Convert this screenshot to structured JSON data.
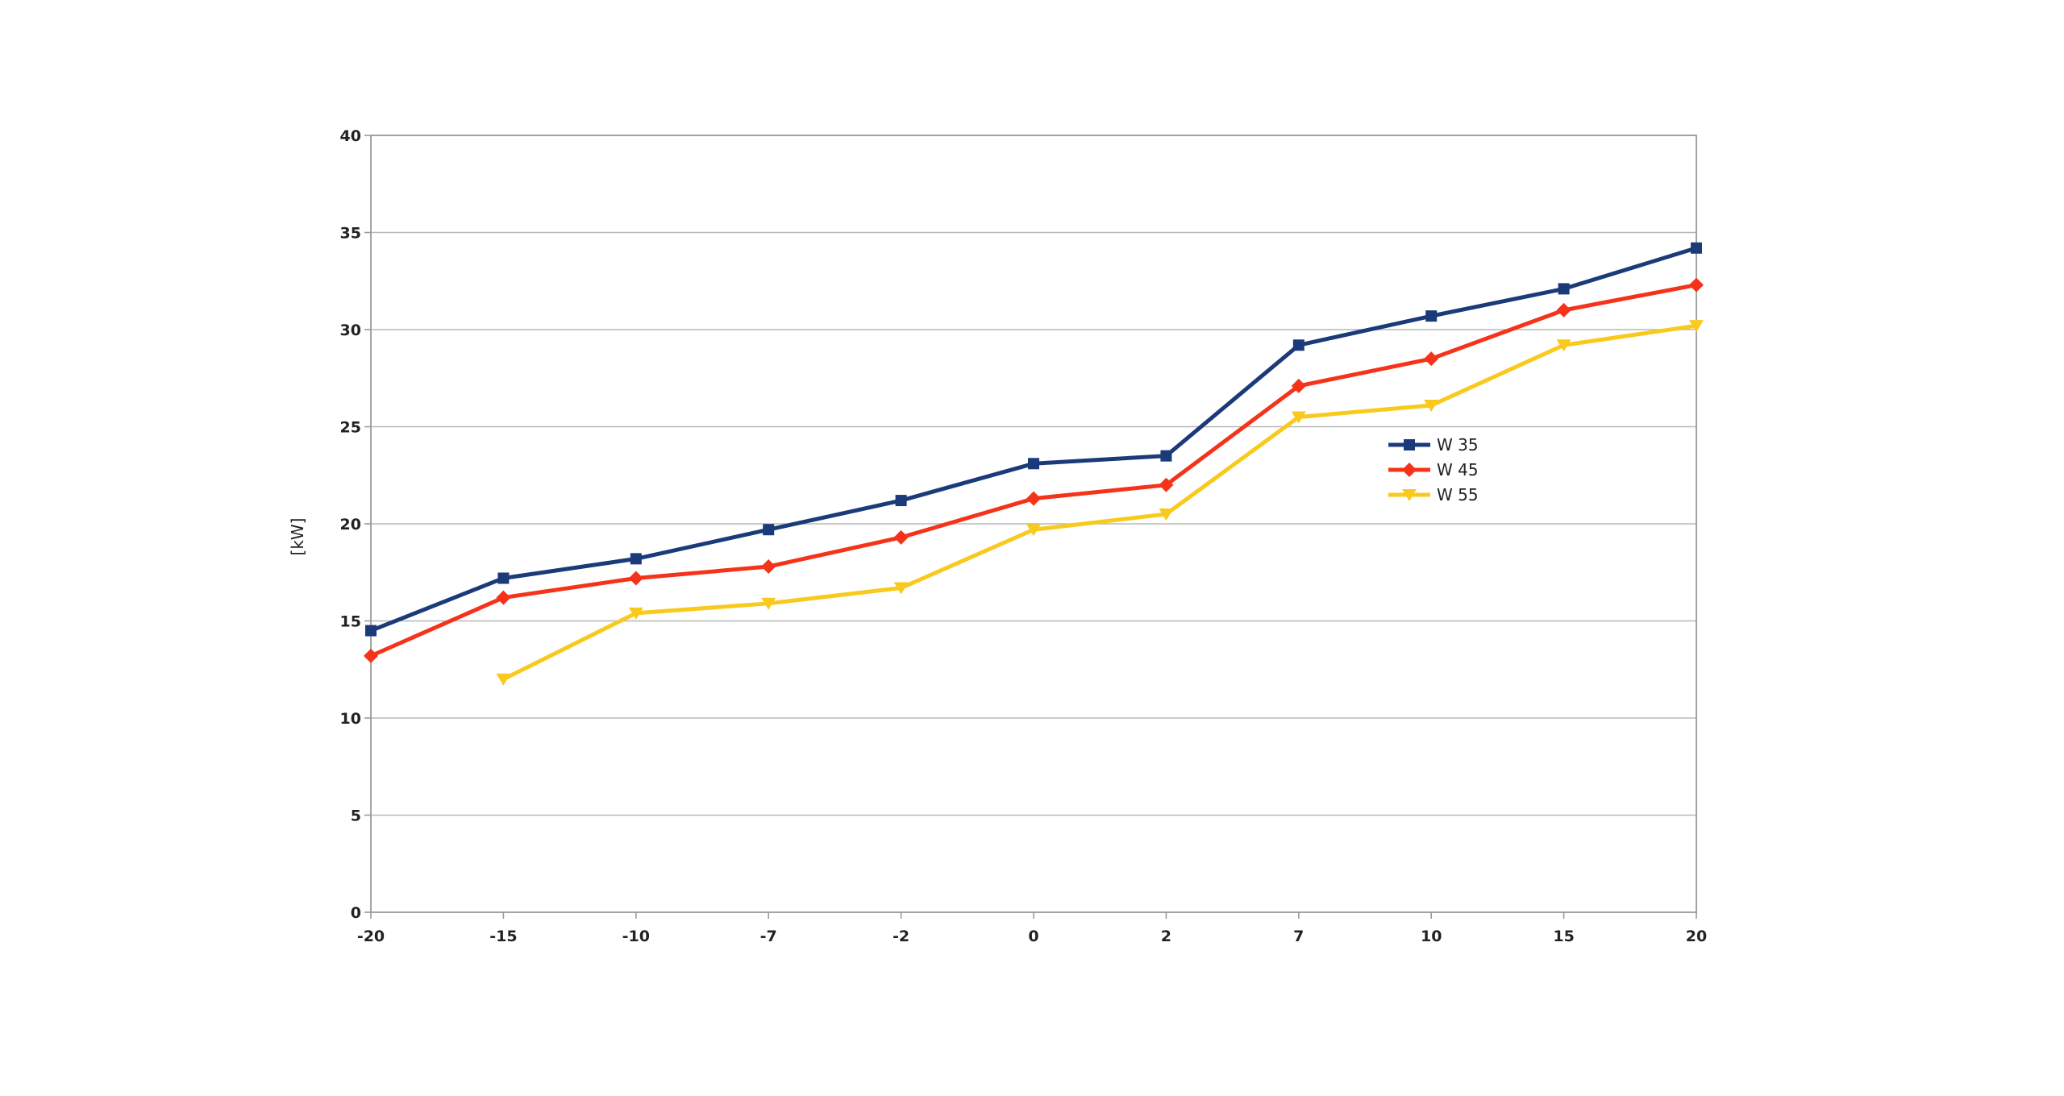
{
  "chart_data": {
    "type": "line",
    "title": "",
    "xlabel": "",
    "ylabel": "[kW]",
    "categories": [
      "-20",
      "-15",
      "-10",
      "-7",
      "-2",
      "0",
      "2",
      "7",
      "10",
      "15",
      "20"
    ],
    "ylim": [
      0,
      40
    ],
    "yticks": [
      "0",
      "5",
      "10",
      "15",
      "20",
      "25",
      "30",
      "35",
      "40"
    ],
    "grid": true,
    "legend_position": "right-center",
    "series": [
      {
        "name": "W 35",
        "color": "#1b3a7a",
        "marker": "square",
        "values": [
          14.5,
          17.2,
          18.2,
          19.7,
          21.2,
          23.1,
          23.5,
          29.2,
          30.7,
          32.1,
          34.2
        ]
      },
      {
        "name": "W 45",
        "color": "#f4331a",
        "marker": "diamond",
        "values": [
          13.2,
          16.2,
          17.2,
          17.8,
          19.3,
          21.3,
          22.0,
          27.1,
          28.5,
          31.0,
          32.3
        ]
      },
      {
        "name": "W 55",
        "color": "#f9c91c",
        "marker": "triangle-down",
        "values": [
          null,
          12.0,
          15.4,
          15.9,
          16.7,
          19.7,
          20.5,
          25.5,
          26.1,
          29.2,
          30.2
        ]
      }
    ]
  }
}
